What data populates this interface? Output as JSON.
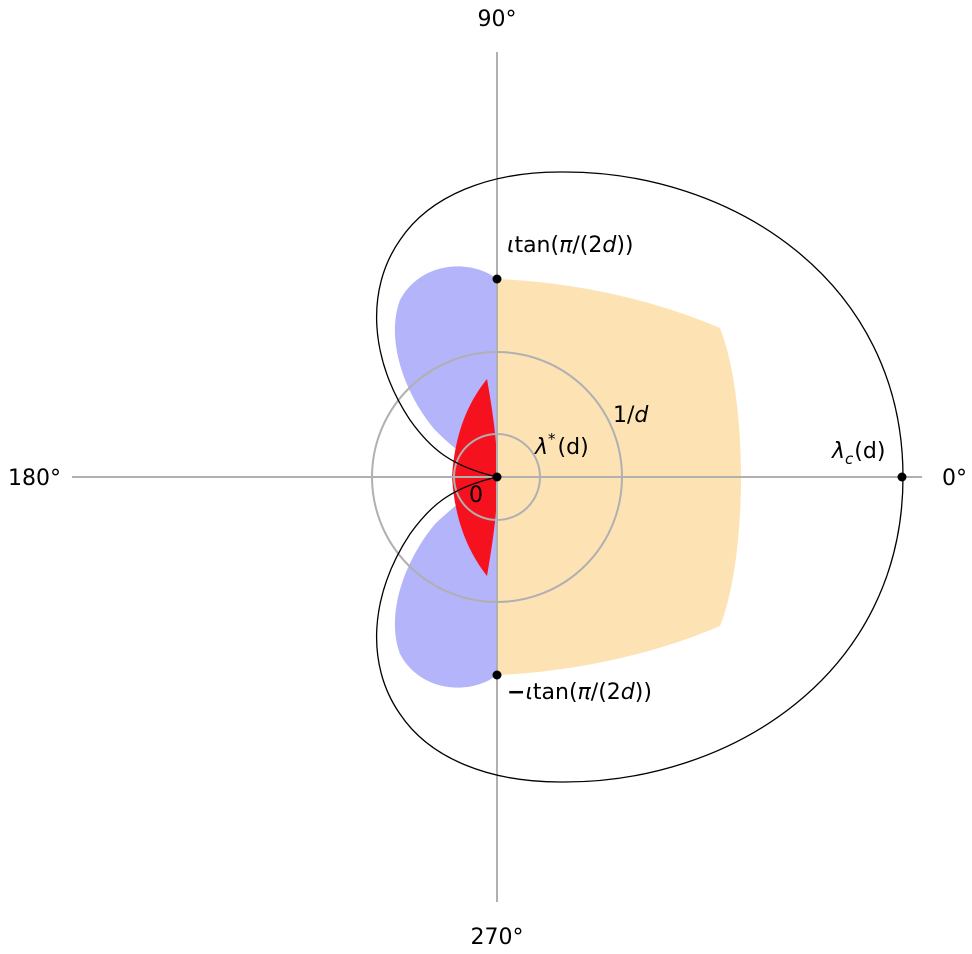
{
  "angle_labels": {
    "deg0": "0°",
    "deg90": "90°",
    "deg180": "180°",
    "deg270": "270°"
  },
  "labels": {
    "origin": "0",
    "lambda_star": {
      "main": "λ",
      "sup": "*",
      "tail": "(d)"
    },
    "one_over_d": {
      "num": "1/",
      "var": "d"
    },
    "lambda_c": {
      "main": "λ",
      "sub": "c",
      "tail": "(d)"
    },
    "top_point": {
      "prefix": "ι",
      "func": "tan(",
      "pi": "π",
      "mid": "/(2",
      "var": "d",
      "close": "))"
    },
    "bottom_point": {
      "sign": "−",
      "prefix": "ι",
      "func": "tan(",
      "pi": "π",
      "mid": "/(2",
      "var": "d",
      "close": "))"
    }
  },
  "colors": {
    "axis": "#b0b0b0",
    "circle": "#b0b0b0",
    "outline": "#000000",
    "blue_region": "#b4b4fa",
    "orange_region": "#fde3b4",
    "red_region": "#f5121e",
    "points": "#000000"
  }
}
